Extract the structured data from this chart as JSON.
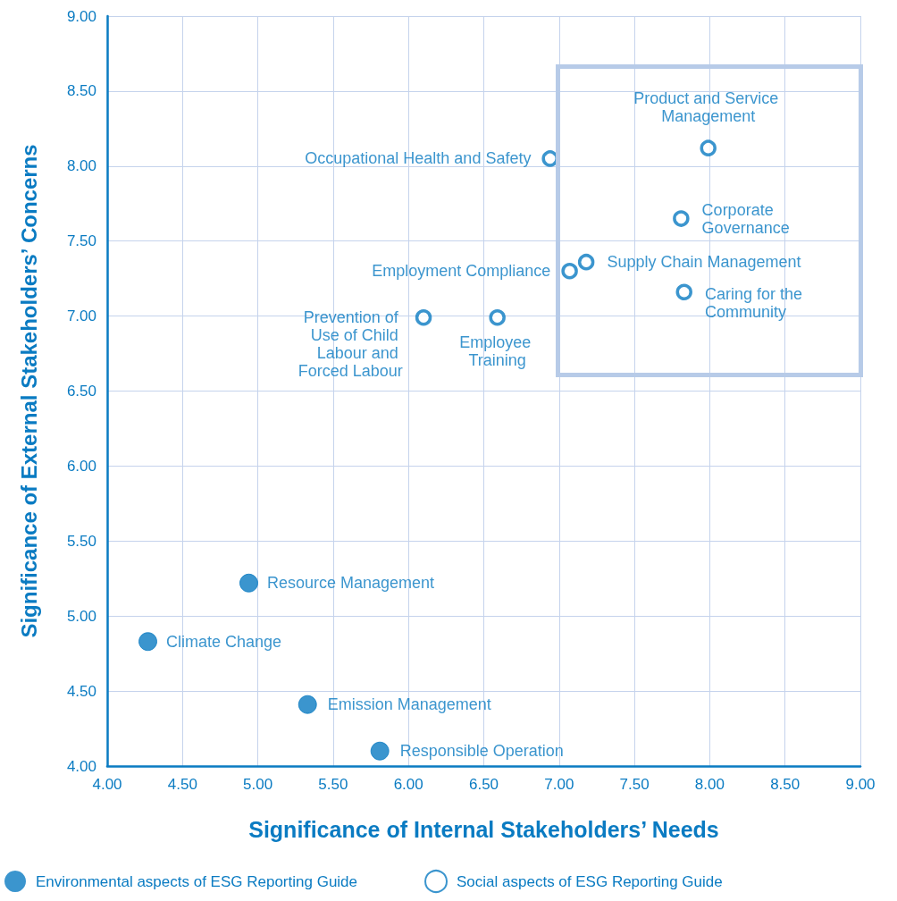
{
  "chart_data": {
    "type": "scatter",
    "xlabel": "Significance of Internal Stakeholders’ Needs",
    "ylabel": "Significance of External Stakeholders’ Concerns",
    "xlim": [
      4,
      9
    ],
    "ylim": [
      4,
      9
    ],
    "xticks": [
      {
        "value": 4,
        "label": "4.00"
      },
      {
        "value": 4.5,
        "label": "4.50"
      },
      {
        "value": 5,
        "label": "5.00"
      },
      {
        "value": 5.5,
        "label": "5.50"
      },
      {
        "value": 6,
        "label": "6.00"
      },
      {
        "value": 6.5,
        "label": "6.50"
      },
      {
        "value": 7,
        "label": "7.00"
      },
      {
        "value": 7.5,
        "label": "7.50"
      },
      {
        "value": 8,
        "label": "8.00"
      },
      {
        "value": 8.5,
        "label": "8.50"
      },
      {
        "value": 9,
        "label": "9.00"
      }
    ],
    "yticks": [
      {
        "value": 4,
        "label": "4.00"
      },
      {
        "value": 4.5,
        "label": "4.50"
      },
      {
        "value": 5,
        "label": "5.00"
      },
      {
        "value": 5.5,
        "label": "5.50"
      },
      {
        "value": 6,
        "label": "6.00"
      },
      {
        "value": 6.5,
        "label": "6.50"
      },
      {
        "value": 7,
        "label": "7.00"
      },
      {
        "value": 7.5,
        "label": "7.50"
      },
      {
        "value": 8,
        "label": "8.00"
      },
      {
        "value": 8.5,
        "label": "8.50"
      },
      {
        "value": 9,
        "label": "9.00"
      }
    ],
    "grid": true,
    "legend": "bottom",
    "marker": "circle",
    "series": [
      {
        "name": "Social aspects of ESG Reporting Guide",
        "color": "#0a7bc2",
        "x": [
          6.94,
          7.99,
          7.81,
          7.18,
          7.07,
          7.83,
          6.1,
          6.59
        ],
        "values": [
          8.05,
          8.12,
          7.65,
          7.36,
          7.3,
          7.16,
          6.99,
          6.99
        ]
      },
      {
        "name": "Environmental aspects of ESG Reporting Guide",
        "color": "#0a7bc2",
        "x": [
          4.94,
          4.27,
          5.33,
          5.81
        ],
        "values": [
          5.22,
          4.83,
          4.41,
          4.1
        ]
      }
    ],
    "annotations": [
      {
        "text": "Occupational Health and Safety",
        "x": 6.94,
        "y": 8.05
      },
      {
        "text": "Product and Service Management",
        "x": 7.99,
        "y": 8.12
      },
      {
        "text": "Corporate Governance",
        "x": 7.81,
        "y": 7.65
      },
      {
        "text": "Supply Chain Management",
        "x": 7.18,
        "y": 7.36
      },
      {
        "text": "Employment Compliance",
        "x": 7.07,
        "y": 7.3
      },
      {
        "text": "Caring for the Community",
        "x": 7.83,
        "y": 7.16
      },
      {
        "text": "Prevention of Use of Child Labour and Forced Labour",
        "x": 6.1,
        "y": 6.99
      },
      {
        "text": "Employee Training",
        "x": 6.59,
        "y": 6.99
      },
      {
        "text": "Resource Management",
        "x": 4.94,
        "y": 5.22
      },
      {
        "text": "Climate Change",
        "x": 4.27,
        "y": 4.83
      },
      {
        "text": "Emission Management",
        "x": 5.33,
        "y": 4.41
      },
      {
        "text": "Responsible Operation",
        "x": 5.81,
        "y": 4.1
      }
    ]
  }
}
